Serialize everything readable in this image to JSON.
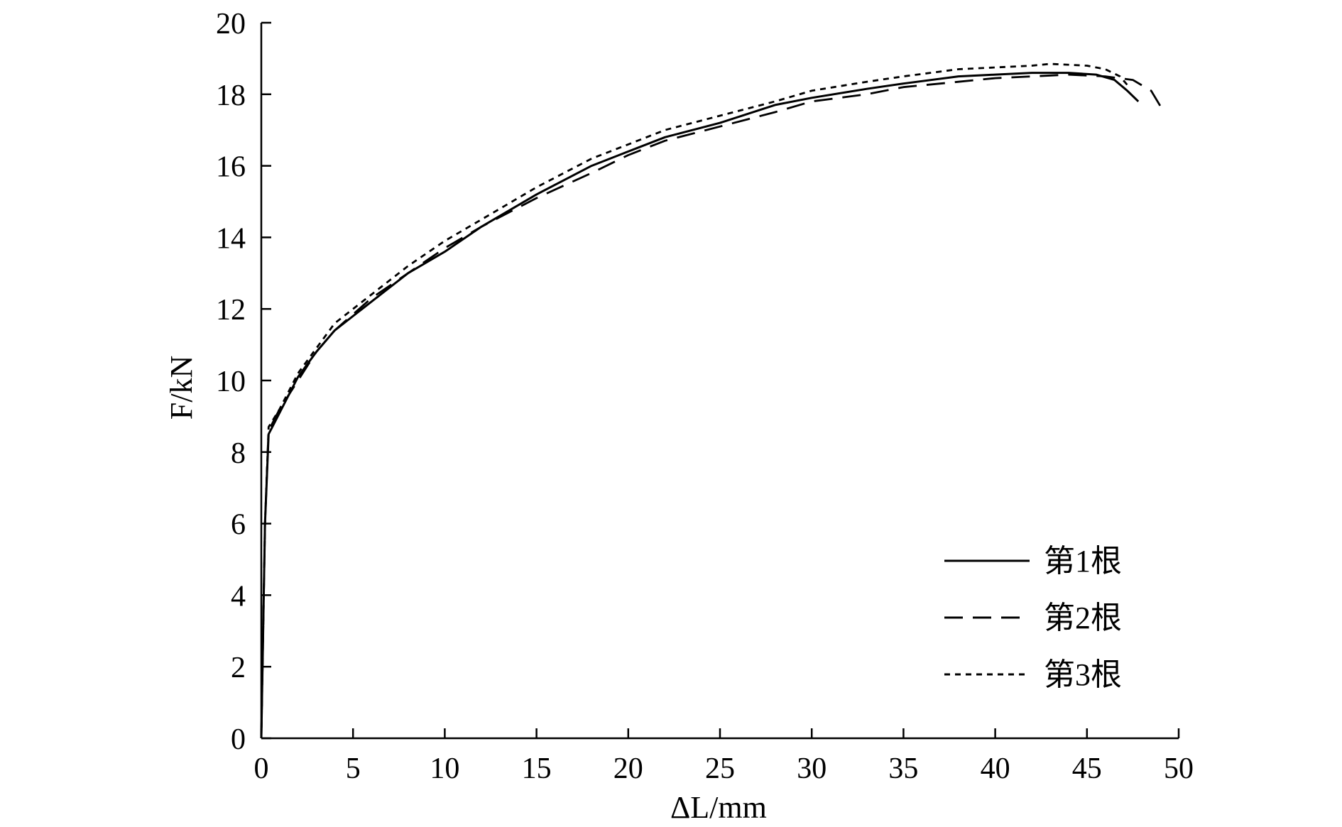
{
  "chart_data": {
    "type": "line",
    "title": "",
    "xlabel": "ΔL/mm",
    "ylabel": "F/kN",
    "xlim": [
      0,
      50
    ],
    "ylim": [
      0,
      20
    ],
    "x_ticks": [
      0,
      5,
      10,
      15,
      20,
      25,
      30,
      35,
      40,
      45,
      50
    ],
    "y_ticks": [
      0,
      2,
      4,
      6,
      8,
      10,
      12,
      14,
      16,
      18,
      20
    ],
    "grid": false,
    "legend_position": "bottom-right",
    "series": [
      {
        "name": "第1根",
        "style": "solid",
        "color": "#000000",
        "points": [
          [
            0,
            0
          ],
          [
            0.2,
            6
          ],
          [
            0.4,
            8.5
          ],
          [
            1,
            9.1
          ],
          [
            2,
            10.1
          ],
          [
            3,
            10.8
          ],
          [
            4,
            11.4
          ],
          [
            6,
            12.2
          ],
          [
            8,
            13.0
          ],
          [
            10,
            13.6
          ],
          [
            12,
            14.3
          ],
          [
            15,
            15.2
          ],
          [
            18,
            16.0
          ],
          [
            20,
            16.4
          ],
          [
            22,
            16.8
          ],
          [
            25,
            17.2
          ],
          [
            28,
            17.7
          ],
          [
            30,
            17.9
          ],
          [
            33,
            18.15
          ],
          [
            35,
            18.3
          ],
          [
            38,
            18.5
          ],
          [
            40,
            18.55
          ],
          [
            42,
            18.6
          ],
          [
            44,
            18.6
          ],
          [
            45.5,
            18.55
          ],
          [
            46.5,
            18.4
          ],
          [
            47.2,
            18.1
          ],
          [
            47.8,
            17.8
          ]
        ]
      },
      {
        "name": "第2根",
        "style": "dashed",
        "color": "#000000",
        "points": [
          [
            0,
            0
          ],
          [
            0.2,
            6
          ],
          [
            0.4,
            8.6
          ],
          [
            1,
            9.2
          ],
          [
            2,
            10.0
          ],
          [
            3,
            10.8
          ],
          [
            4,
            11.4
          ],
          [
            6,
            12.3
          ],
          [
            8,
            13.0
          ],
          [
            10,
            13.7
          ],
          [
            12,
            14.3
          ],
          [
            15,
            15.1
          ],
          [
            18,
            15.8
          ],
          [
            20,
            16.3
          ],
          [
            22,
            16.7
          ],
          [
            25,
            17.1
          ],
          [
            28,
            17.5
          ],
          [
            30,
            17.8
          ],
          [
            33,
            18.0
          ],
          [
            35,
            18.2
          ],
          [
            38,
            18.35
          ],
          [
            40,
            18.45
          ],
          [
            42,
            18.5
          ],
          [
            44,
            18.55
          ],
          [
            46,
            18.5
          ],
          [
            47.5,
            18.4
          ],
          [
            48.5,
            18.1
          ],
          [
            49.2,
            17.5
          ]
        ]
      },
      {
        "name": "第3根",
        "style": "dotted",
        "color": "#000000",
        "points": [
          [
            0,
            0
          ],
          [
            0.2,
            6
          ],
          [
            0.4,
            8.7
          ],
          [
            1,
            9.2
          ],
          [
            2,
            10.2
          ],
          [
            3,
            10.9
          ],
          [
            4,
            11.6
          ],
          [
            6,
            12.4
          ],
          [
            8,
            13.2
          ],
          [
            10,
            13.9
          ],
          [
            12,
            14.5
          ],
          [
            15,
            15.4
          ],
          [
            18,
            16.2
          ],
          [
            20,
            16.6
          ],
          [
            22,
            17.0
          ],
          [
            25,
            17.4
          ],
          [
            28,
            17.8
          ],
          [
            30,
            18.1
          ],
          [
            33,
            18.35
          ],
          [
            35,
            18.5
          ],
          [
            38,
            18.7
          ],
          [
            40,
            18.75
          ],
          [
            42,
            18.8
          ],
          [
            43,
            18.85
          ],
          [
            45,
            18.8
          ],
          [
            46,
            18.7
          ],
          [
            46.8,
            18.5
          ],
          [
            47.3,
            18.2
          ]
        ]
      }
    ]
  }
}
